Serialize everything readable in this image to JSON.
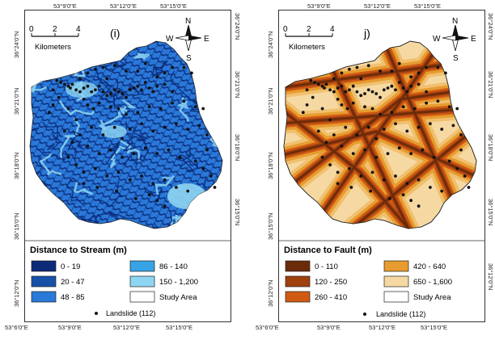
{
  "panel_i": {
    "label": "(i)",
    "scale_ticks": [
      "0",
      "2",
      "4"
    ],
    "scale_unit": "Kilometers",
    "north": {
      "n": "N",
      "s": "S",
      "e": "E",
      "w": "W"
    },
    "top_lon": [
      "53°9'0\"E",
      "53°12'0\"E",
      "53°15'0\"E"
    ],
    "bottom_lon": [
      "53°6'0\"E",
      "53°9'0\"E",
      "53°12'0\"E",
      "53°15'0\"E"
    ],
    "left_lat": [
      "36°24'0\"N",
      "36°21'0\"N",
      "36°18'0\"N",
      "36°15'0\"N",
      "36°12'0\"N"
    ],
    "right_lat": [
      "36°24'0\"N",
      "36°21'0\"N",
      "36°18'0\"N",
      "36°15'0\"N"
    ],
    "legend": {
      "title": "Distance to Stream (m)",
      "classes": [
        {
          "label": "0 - 19",
          "color": "#0b2a78"
        },
        {
          "label": "20 - 47",
          "color": "#1650a8"
        },
        {
          "label": "48 - 85",
          "color": "#2a78d8"
        },
        {
          "label": "86 - 140",
          "color": "#36a4e4"
        },
        {
          "label": "150 - 1,200",
          "color": "#8fd6f3"
        },
        {
          "label": "Study Area",
          "color": "#ffffff"
        }
      ],
      "landslide": "Landslide (112)"
    }
  },
  "panel_j": {
    "label": "j)",
    "scale_ticks": [
      "0",
      "2",
      "4"
    ],
    "scale_unit": "Kilometers",
    "north": {
      "n": "N",
      "s": "S",
      "e": "E",
      "w": "W"
    },
    "top_lon": [
      "53°9'0\"E",
      "53°12'0\"E",
      "53°15'0\"E"
    ],
    "bottom_lon": [
      "53°6'0\"E",
      "53°9'0\"E",
      "53°12'0\"E",
      "53°15'0\"E"
    ],
    "left_lat": [
      "36°24'0\"N",
      "36°21'0\"N",
      "36°18'0\"N",
      "36°15'0\"N",
      "36°12'0\"N"
    ],
    "right_lat": [
      "36°24'0\"N",
      "36°21'0\"N",
      "36°18'0\"N",
      "36°15'0\"N",
      "36°12'0\"N"
    ],
    "legend": {
      "title": "Distance to Fault (m)",
      "classes": [
        {
          "label": "0 - 110",
          "color": "#6b2a0a"
        },
        {
          "label": "120 - 250",
          "color": "#a0400e"
        },
        {
          "label": "260 - 410",
          "color": "#d05a14"
        },
        {
          "label": "420 - 640",
          "color": "#e69c2e"
        },
        {
          "label": "650 - 1,600",
          "color": "#f6d9a2"
        },
        {
          "label": "Study Area",
          "color": "#ffffff"
        }
      ],
      "landslide": "Landslide (112)"
    }
  },
  "colors": {
    "stream_bg": "#2a78d8",
    "stream_dark": "#0b2a78",
    "stream_mid": "#1650a8",
    "stream_light": "#8fd6f3",
    "fault_bg": "#f6d9a2",
    "fault_1": "#6b2a0a",
    "fault_2": "#a0400e",
    "fault_3": "#d05a14",
    "fault_4": "#e69c2e",
    "landslide": "#111111"
  },
  "landslides": [
    [
      0.14,
      0.21
    ],
    [
      0.16,
      0.22
    ],
    [
      0.18,
      0.23
    ],
    [
      0.2,
      0.24
    ],
    [
      0.21,
      0.25
    ],
    [
      0.22,
      0.23
    ],
    [
      0.24,
      0.26
    ],
    [
      0.26,
      0.27
    ],
    [
      0.28,
      0.25
    ],
    [
      0.3,
      0.24
    ],
    [
      0.32,
      0.27
    ],
    [
      0.34,
      0.26
    ],
    [
      0.36,
      0.24
    ],
    [
      0.38,
      0.27
    ],
    [
      0.4,
      0.29
    ],
    [
      0.42,
      0.28
    ],
    [
      0.44,
      0.26
    ],
    [
      0.46,
      0.27
    ],
    [
      0.48,
      0.28
    ],
    [
      0.5,
      0.3
    ],
    [
      0.52,
      0.26
    ],
    [
      0.54,
      0.25
    ],
    [
      0.56,
      0.24
    ],
    [
      0.58,
      0.26
    ],
    [
      0.6,
      0.22
    ],
    [
      0.62,
      0.25
    ],
    [
      0.64,
      0.27
    ],
    [
      0.66,
      0.24
    ],
    [
      0.7,
      0.23
    ],
    [
      0.74,
      0.27
    ],
    [
      0.3,
      0.17
    ],
    [
      0.34,
      0.15
    ],
    [
      0.38,
      0.14
    ],
    [
      0.44,
      0.13
    ],
    [
      0.5,
      0.16
    ],
    [
      0.56,
      0.16
    ],
    [
      0.6,
      0.12
    ],
    [
      0.66,
      0.19
    ],
    [
      0.7,
      0.17
    ],
    [
      0.74,
      0.14
    ],
    [
      0.8,
      0.14
    ],
    [
      0.84,
      0.17
    ],
    [
      0.28,
      0.31
    ],
    [
      0.3,
      0.34
    ],
    [
      0.33,
      0.36
    ],
    [
      0.36,
      0.33
    ],
    [
      0.42,
      0.35
    ],
    [
      0.46,
      0.36
    ],
    [
      0.5,
      0.39
    ],
    [
      0.56,
      0.38
    ],
    [
      0.62,
      0.35
    ],
    [
      0.68,
      0.36
    ],
    [
      0.74,
      0.33
    ],
    [
      0.8,
      0.32
    ],
    [
      0.86,
      0.35
    ],
    [
      0.12,
      0.26
    ],
    [
      0.15,
      0.3
    ],
    [
      0.2,
      0.36
    ],
    [
      0.24,
      0.42
    ],
    [
      0.18,
      0.48
    ],
    [
      0.22,
      0.54
    ],
    [
      0.26,
      0.5
    ],
    [
      0.32,
      0.46
    ],
    [
      0.38,
      0.5
    ],
    [
      0.44,
      0.46
    ],
    [
      0.48,
      0.52
    ],
    [
      0.52,
      0.47
    ],
    [
      0.58,
      0.44
    ],
    [
      0.64,
      0.48
    ],
    [
      0.7,
      0.46
    ],
    [
      0.76,
      0.44
    ],
    [
      0.82,
      0.47
    ],
    [
      0.88,
      0.45
    ],
    [
      0.92,
      0.5
    ],
    [
      0.3,
      0.56
    ],
    [
      0.36,
      0.6
    ],
    [
      0.42,
      0.58
    ],
    [
      0.48,
      0.62
    ],
    [
      0.54,
      0.6
    ],
    [
      0.6,
      0.57
    ],
    [
      0.66,
      0.6
    ],
    [
      0.72,
      0.58
    ],
    [
      0.78,
      0.62
    ],
    [
      0.86,
      0.64
    ],
    [
      0.9,
      0.68
    ],
    [
      0.94,
      0.72
    ],
    [
      0.96,
      0.78
    ],
    [
      0.2,
      0.62
    ],
    [
      0.24,
      0.66
    ],
    [
      0.28,
      0.7
    ],
    [
      0.34,
      0.68
    ],
    [
      0.4,
      0.72
    ],
    [
      0.46,
      0.7
    ],
    [
      0.52,
      0.74
    ],
    [
      0.58,
      0.72
    ],
    [
      0.64,
      0.76
    ],
    [
      0.7,
      0.74
    ],
    [
      0.76,
      0.78
    ],
    [
      0.82,
      0.8
    ],
    [
      0.62,
      0.82
    ],
    [
      0.66,
      0.85
    ],
    [
      0.7,
      0.88
    ],
    [
      0.55,
      0.84
    ],
    [
      0.45,
      0.8
    ],
    [
      0.35,
      0.78
    ],
    [
      0.28,
      0.76
    ],
    [
      0.92,
      0.58
    ],
    [
      0.9,
      0.36
    ],
    [
      0.12,
      0.34
    ],
    [
      0.1,
      0.38
    ],
    [
      0.26,
      0.2
    ],
    [
      0.4,
      0.2
    ]
  ]
}
